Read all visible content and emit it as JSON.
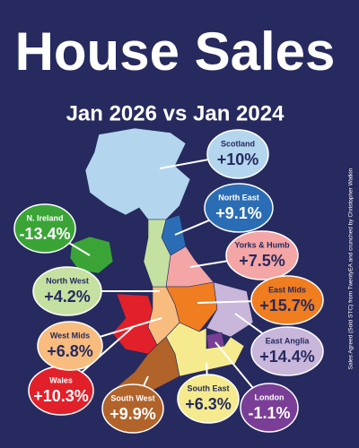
{
  "header": {
    "title": "House Sales",
    "subtitle": "Jan 2026 vs Jan 2024"
  },
  "regions": [
    {
      "name": "Scotland",
      "change": "+10%",
      "color": "#b3d6ee",
      "text_color": "#262a5e"
    },
    {
      "name": "North East",
      "change": "+9.1%",
      "color": "#2b6db5",
      "text_color": "#ffffff"
    },
    {
      "name": "Yorks & Humb",
      "change": "+7.5%",
      "color": "#f4a5a5",
      "text_color": "#262a5e"
    },
    {
      "name": "East Mids",
      "change": "+15.7%",
      "color": "#f07d1f",
      "text_color": "#262a5e"
    },
    {
      "name": "East Anglia",
      "change": "+14.4%",
      "color": "#c8b6db",
      "text_color": "#262a5e"
    },
    {
      "name": "London",
      "change": "-1.1%",
      "color": "#7a3e97",
      "text_color": "#ffffff"
    },
    {
      "name": "South East",
      "change": "+6.3%",
      "color": "#f5eb8e",
      "text_color": "#262a5e"
    },
    {
      "name": "South West",
      "change": "+9.9%",
      "color": "#b1632a",
      "text_color": "#ffffff"
    },
    {
      "name": "Wales",
      "change": "+10.3%",
      "color": "#e2202a",
      "text_color": "#ffffff"
    },
    {
      "name": "West Mids",
      "change": "+6.8%",
      "color": "#f8bc7f",
      "text_color": "#262a5e"
    },
    {
      "name": "North West",
      "change": "+4.2%",
      "color": "#c5e1a2",
      "text_color": "#262a5e"
    },
    {
      "name": "N. Ireland",
      "change": "-13.4%",
      "color": "#3aa536",
      "text_color": "#ffffff"
    }
  ],
  "source": "Sales Agreed (Sold STC) from TwentyEA and crunched by Christopher Watkin"
}
